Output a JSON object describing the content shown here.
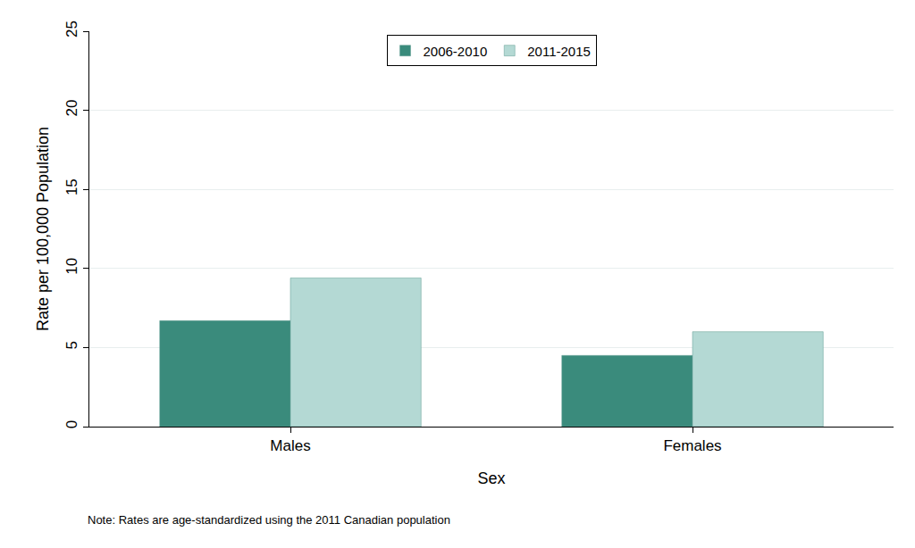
{
  "chart_data": {
    "type": "bar",
    "x_label": "Sex",
    "y_label": "Rate per 100,000 Population",
    "annotations": [
      "Note: Rates are age-standardized using the 2011 Canadian population"
    ],
    "categories": [
      "Males",
      "Females"
    ],
    "series": [
      {
        "name": "2006-2010",
        "color": "#3a8b7c",
        "values": [
          6.7,
          4.5
        ]
      },
      {
        "name": "2011-2015",
        "color": "#b4d9d4",
        "values": [
          9.4,
          6.0
        ]
      }
    ],
    "ylim": [
      0,
      25
    ],
    "yticks": [
      0,
      5,
      10,
      15,
      20,
      25
    ],
    "grid": true,
    "legend": "top"
  }
}
